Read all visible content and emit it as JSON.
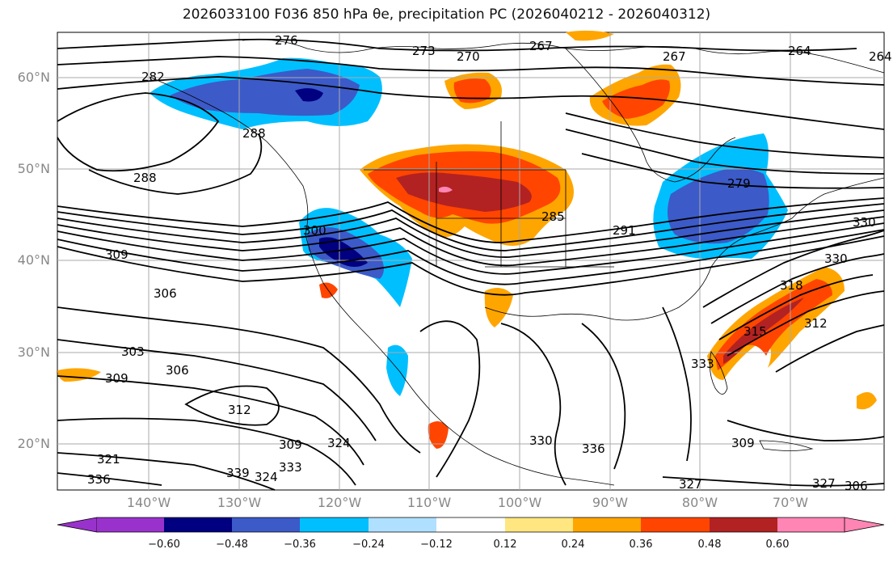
{
  "title": "2026033100 F036 850 hPa θe, precipitation PC (2026040212 - 2026040312)",
  "map": {
    "lat_labels": [
      "60°N",
      "50°N",
      "40°N",
      "30°N",
      "20°N"
    ],
    "lon_labels": [
      "140°W",
      "130°W",
      "120°W",
      "110°W",
      "100°W",
      "90°W",
      "80°W",
      "70°W"
    ],
    "contour_labels": [
      "276",
      "273",
      "267",
      "270",
      "264",
      "267",
      "264",
      "282",
      "288",
      "288",
      "285",
      "291",
      "279",
      "309",
      "306",
      "300",
      "303",
      "309",
      "306",
      "312",
      "309",
      "324",
      "321",
      "324",
      "333",
      "339",
      "336",
      "330",
      "336",
      "333",
      "330",
      "318",
      "315",
      "312",
      "309",
      "306",
      "327",
      "330",
      "327"
    ],
    "colors": {
      "neg_deep": "#9932cc",
      "neg_strong": "#000080",
      "neg_mid": "#3c5ac8",
      "neg_light": "#00bfff",
      "neg_pale": "#b0e0ff",
      "pos_pale": "#ffe680",
      "pos_light": "#ffa500",
      "pos_mid": "#ff4500",
      "pos_strong": "#b22222",
      "pos_deep": "#ff85b4",
      "contour": "#000000",
      "grid": "#aaaaaa",
      "coast": "#000000"
    }
  },
  "colorbar": {
    "ticks": [
      "−0.60",
      "−0.48",
      "−0.36",
      "−0.24",
      "−0.12",
      "0.12",
      "0.24",
      "0.36",
      "0.48",
      "0.60"
    ],
    "bins": [
      "#9932cc",
      "#000080",
      "#3c5ac8",
      "#00bfff",
      "#b0e0ff",
      "#ffffff",
      "#ffe680",
      "#ffa500",
      "#ff4500",
      "#b22222",
      "#ff85b4"
    ]
  }
}
